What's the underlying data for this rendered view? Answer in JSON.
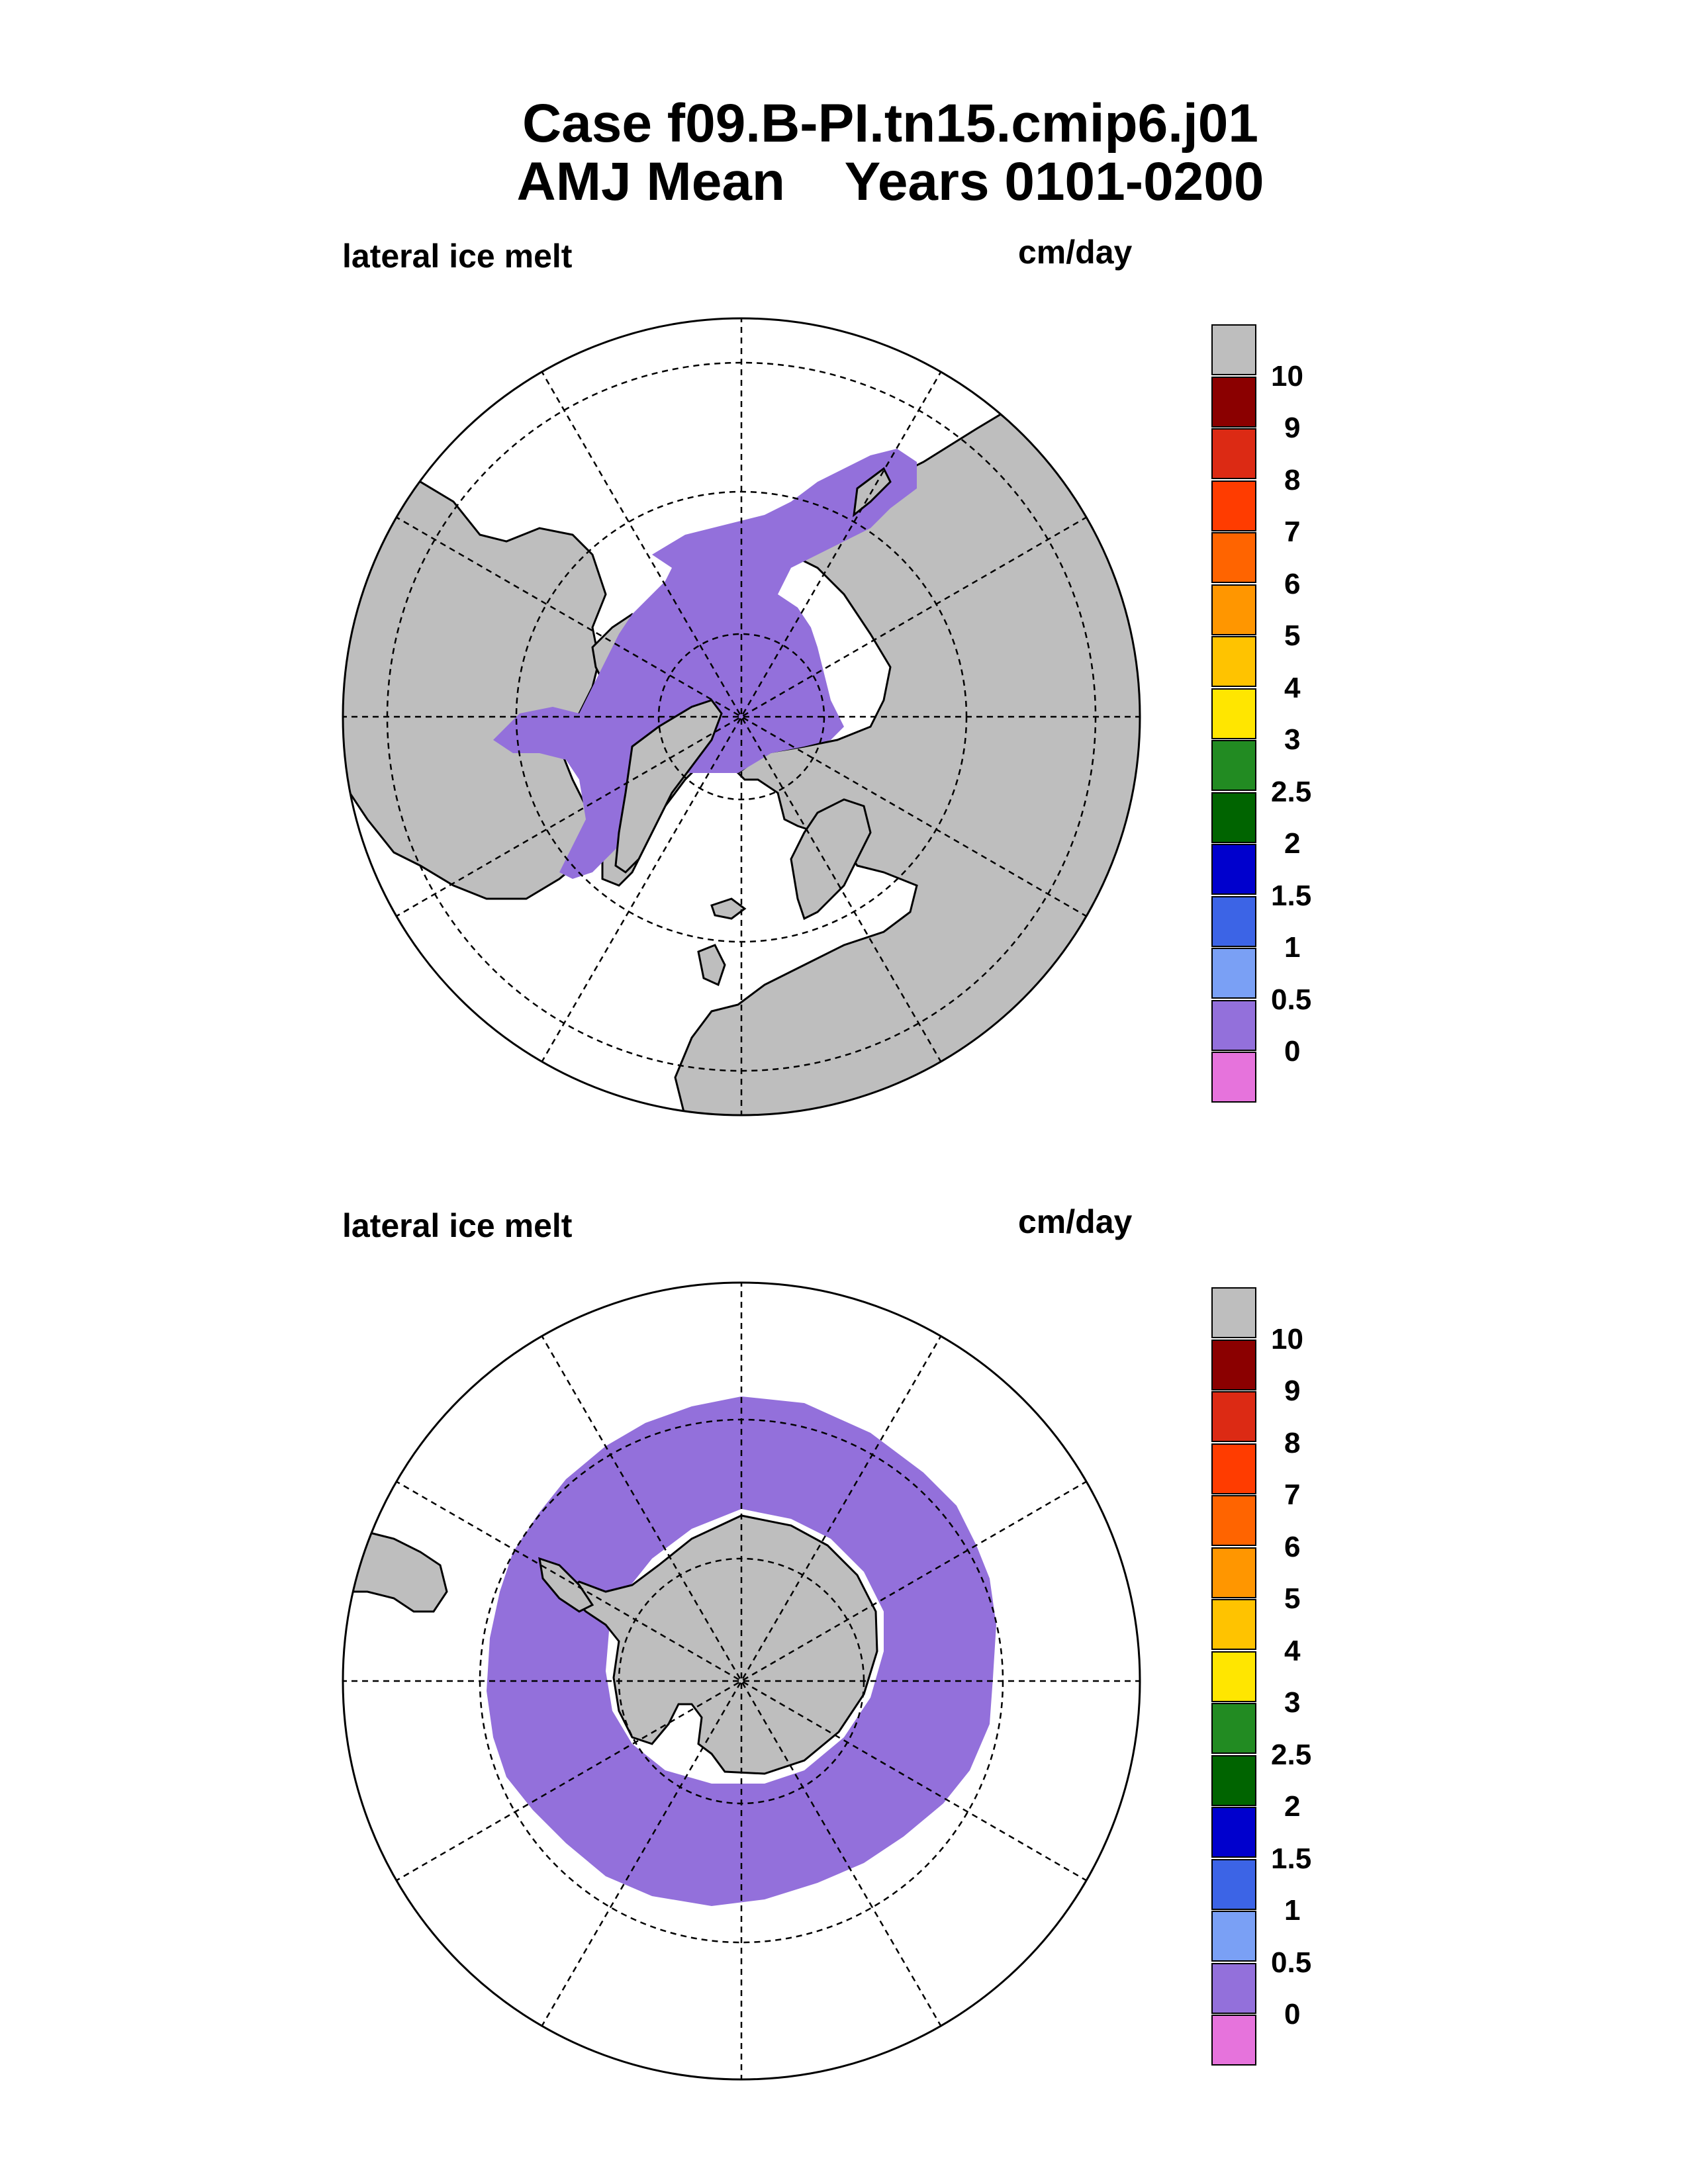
{
  "header": {
    "title_line1": "Case f09.B-PI.tn15.cmip6.j01",
    "title_line2": "AMJ Mean    Years 0101-0200"
  },
  "panels": [
    {
      "id": "north",
      "variable_label": "lateral ice melt",
      "units_label": "cm/day",
      "colorbar": {
        "colors": [
          "#bebebe",
          "#8b0000",
          "#dc2a14",
          "#ff3c00",
          "#ff6400",
          "#ff9600",
          "#ffc300",
          "#ffe600",
          "#228b22",
          "#006400",
          "#0000cd",
          "#3c64e6",
          "#7aa0f5",
          "#9370db",
          "#e673dc"
        ],
        "tick_labels": [
          "10",
          "9",
          "8",
          "7",
          "6",
          "5",
          "4",
          "3",
          "2.5",
          "2",
          "1.5",
          "1",
          "0.5",
          "0"
        ]
      }
    },
    {
      "id": "south",
      "variable_label": "lateral ice melt",
      "units_label": "cm/day",
      "colorbar": {
        "colors": [
          "#bebebe",
          "#8b0000",
          "#dc2a14",
          "#ff3c00",
          "#ff6400",
          "#ff9600",
          "#ffc300",
          "#ffe600",
          "#228b22",
          "#006400",
          "#0000cd",
          "#3c64e6",
          "#7aa0f5",
          "#9370db",
          "#e673dc"
        ],
        "tick_labels": [
          "10",
          "9",
          "8",
          "7",
          "6",
          "5",
          "4",
          "3",
          "2.5",
          "2",
          "1.5",
          "1",
          "0.5",
          "0"
        ]
      }
    }
  ],
  "map_style": {
    "land_color": "#bebebe",
    "ice_color": "#9370db",
    "ocean_color": "#ffffff"
  }
}
